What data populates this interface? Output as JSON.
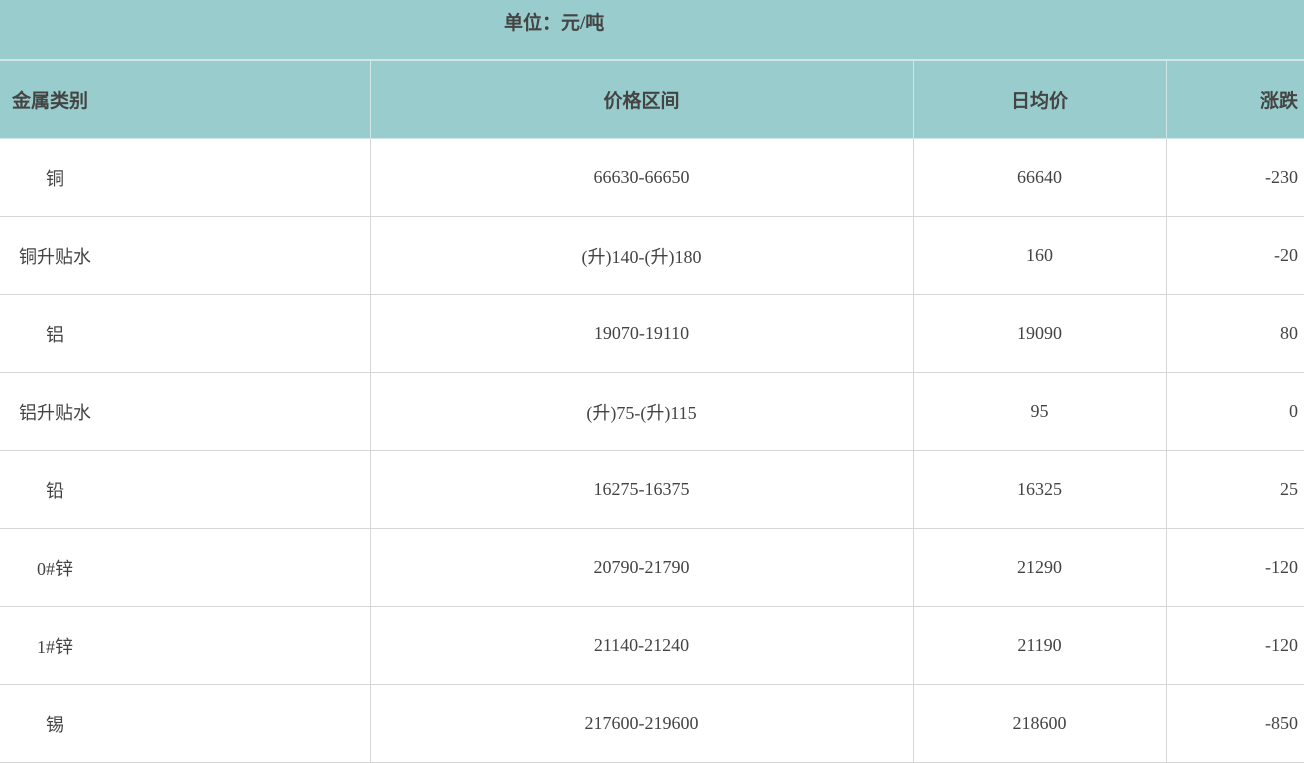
{
  "unit_label": "单位：元/吨",
  "columns": [
    "金属类别",
    "价格区间",
    "日均价",
    "涨跌"
  ],
  "rows": [
    {
      "metal": "铜",
      "range": "66630-66650",
      "avg": "66640",
      "change": "-230"
    },
    {
      "metal": "铜升贴水",
      "range": "(升)140-(升)180",
      "avg": "160",
      "change": "-20"
    },
    {
      "metal": "铝",
      "range": "19070-19110",
      "avg": "19090",
      "change": "80"
    },
    {
      "metal": "铝升贴水",
      "range": "(升)75-(升)115",
      "avg": "95",
      "change": "0"
    },
    {
      "metal": "铅",
      "range": "16275-16375",
      "avg": "16325",
      "change": "25"
    },
    {
      "metal": "0#锌",
      "range": "20790-21790",
      "avg": "21290",
      "change": "-120"
    },
    {
      "metal": "1#锌",
      "range": "21140-21240",
      "avg": "21190",
      "change": "-120"
    },
    {
      "metal": "锡",
      "range": "217600-219600",
      "avg": "218600",
      "change": "-850"
    }
  ],
  "colors": {
    "header_bg": "#99cccc",
    "text": "#444444",
    "border": "#d6d6d6"
  }
}
